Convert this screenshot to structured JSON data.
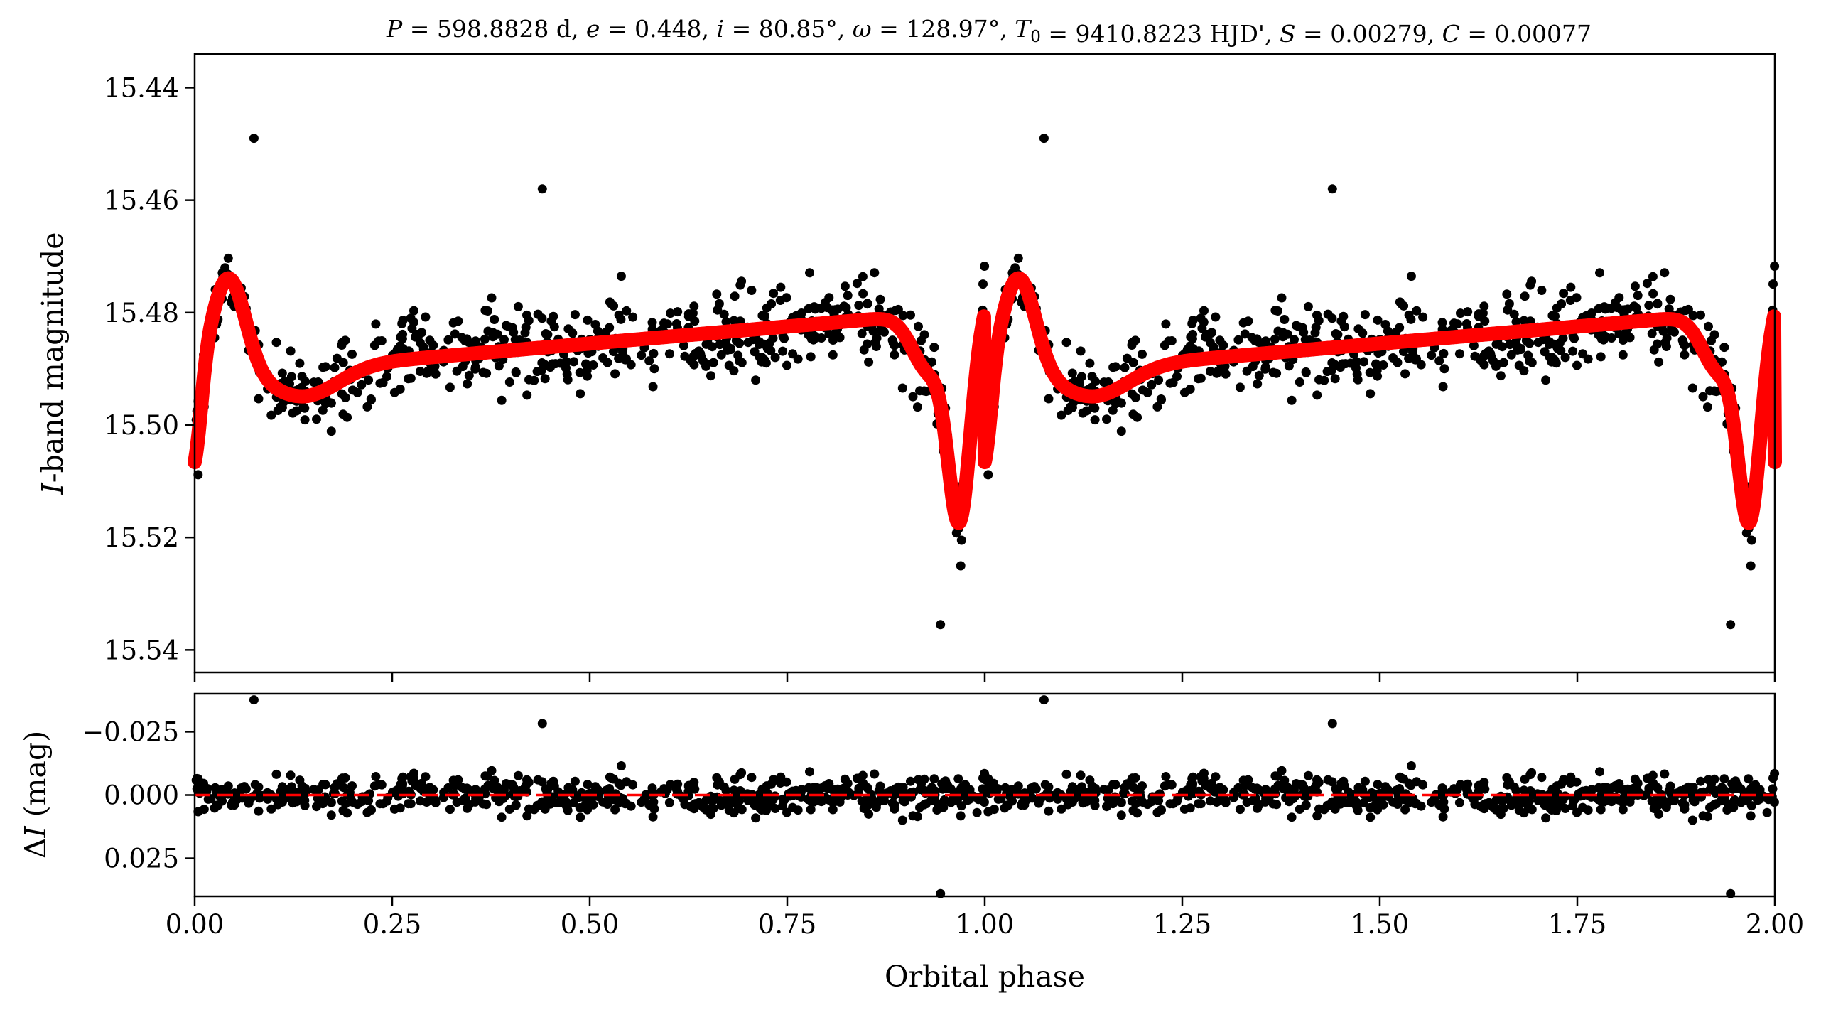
{
  "chart_data": [
    {
      "type": "scatter",
      "panel": "light-curve",
      "title": "P = 598.8828 d, e = 0.448, i = 80.85°, ω = 128.97°, T0 = 9410.8223 HJD', S = 0.00279, C = 0.00077",
      "title_parts": {
        "P": "598.8828 d",
        "e": "0.448",
        "i": "80.85°",
        "omega": "128.97°",
        "T0": "9410.8223 HJD'",
        "S": "0.00279",
        "C": "0.00077"
      },
      "ylabel_italic": "I",
      "ylabel_rest": "-band magnitude",
      "xlim": [
        0.0,
        2.0
      ],
      "ylim": [
        15.544,
        15.434
      ],
      "y_inverted": true,
      "yticks": [
        "15.44",
        "15.46",
        "15.48",
        "15.50",
        "15.52",
        "15.54"
      ],
      "ytick_values": [
        15.44,
        15.46,
        15.48,
        15.5,
        15.52,
        15.54
      ],
      "grid": false,
      "series": [
        {
          "role": "observations",
          "style": "points",
          "color": "#000000",
          "n_points_per_cycle": 620
        },
        {
          "role": "model",
          "style": "line",
          "color": "#ff0000",
          "baseline": 15.4865,
          "primary_minimum": {
            "phase": 0.968,
            "magnitude": 15.515
          },
          "heartbeat_peak": {
            "phase": 0.043,
            "magnitude": 15.4725
          },
          "post_peak_dip": {
            "phase": 0.17,
            "magnitude": 15.4895
          },
          "pre_eclipse_plateau": {
            "phase": 0.83,
            "magnitude": 15.4825
          },
          "notable_points": [
            {
              "x": 0.075,
              "y": 15.449
            },
            {
              "x": 0.44,
              "y": 15.458
            },
            {
              "x": 0.944,
              "y": 15.5355
            },
            {
              "x": 1.075,
              "y": 15.449
            },
            {
              "x": 1.44,
              "y": 15.458
            },
            {
              "x": 1.944,
              "y": 15.5355
            }
          ]
        }
      ]
    },
    {
      "type": "scatter",
      "panel": "residuals",
      "xlabel": "Orbital phase",
      "ylabel_prefix": "Δ",
      "ylabel_italic": "I",
      "ylabel_rest": " (mag)",
      "xlim": [
        0.0,
        2.0
      ],
      "ylim": [
        0.04,
        -0.04
      ],
      "y_inverted": true,
      "xticks": [
        "0.00",
        "0.25",
        "0.50",
        "0.75",
        "1.00",
        "1.25",
        "1.50",
        "1.75",
        "2.00"
      ],
      "xtick_values": [
        0.0,
        0.25,
        0.5,
        0.75,
        1.0,
        1.25,
        1.5,
        1.75,
        2.0
      ],
      "yticks": [
        "−0.025",
        "0.000",
        "0.025"
      ],
      "ytick_values": [
        -0.025,
        0.0,
        0.025
      ],
      "zero_line": {
        "y": 0.0,
        "color": "#ff0000",
        "style": "dashed"
      },
      "grid": false,
      "notable_points": [
        {
          "x": 0.075,
          "y": -0.029
        },
        {
          "x": 0.44,
          "y": -0.028
        },
        {
          "x": 0.944,
          "y": 0.029
        },
        {
          "x": 1.075,
          "y": -0.029
        },
        {
          "x": 1.44,
          "y": -0.028
        },
        {
          "x": 1.944,
          "y": 0.029
        }
      ]
    }
  ]
}
